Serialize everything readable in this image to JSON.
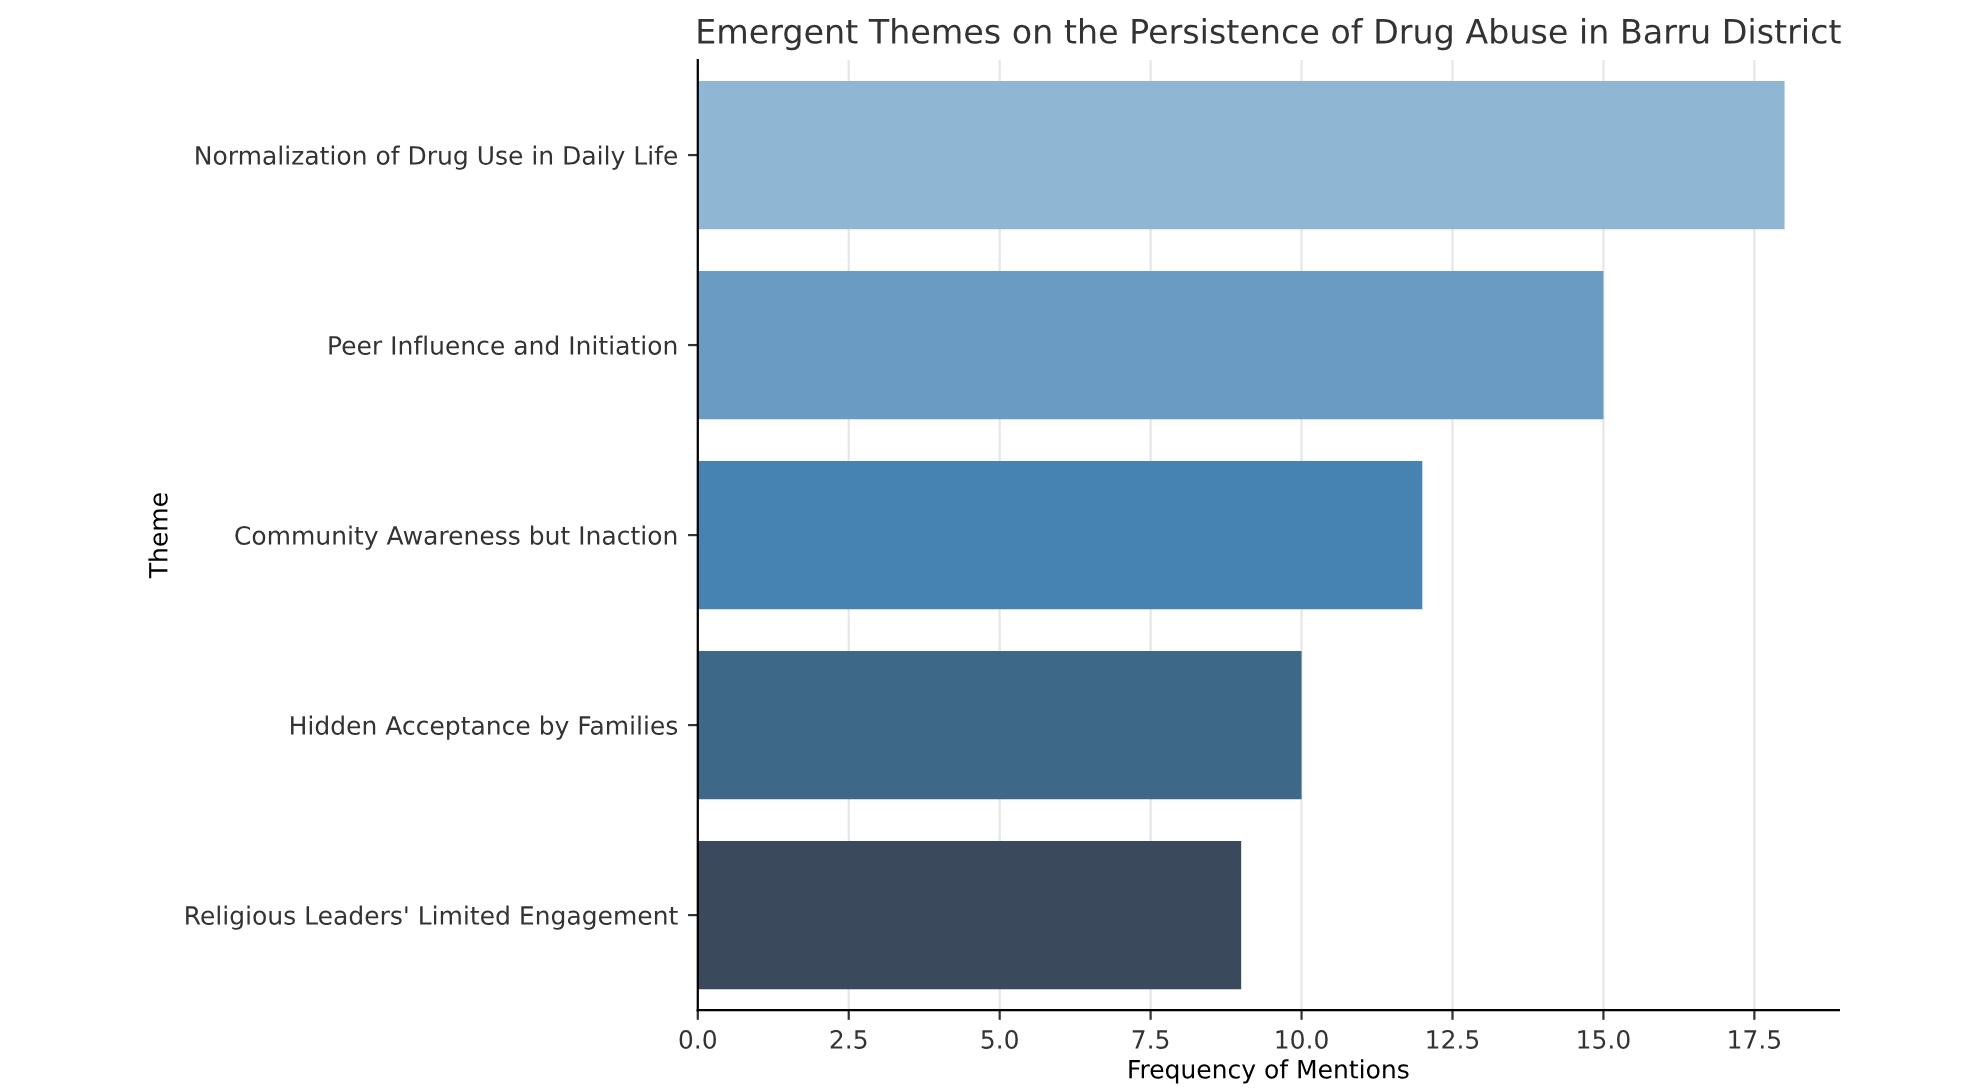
{
  "chart_data": {
    "type": "bar",
    "orientation": "horizontal",
    "title": "Emergent Themes on the Persistence of Drug Abuse in Barru District",
    "xlabel": "Frequency of Mentions",
    "ylabel": "Theme",
    "categories": [
      "Normalization of Drug Use in Daily Life",
      "Peer Influence and Initiation",
      "Community Awareness but Inaction",
      "Hidden Acceptance by Families",
      "Religious Leaders' Limited Engagement"
    ],
    "values": [
      18,
      15,
      12,
      10,
      9
    ],
    "colors": [
      "#8fb6d2",
      "#6a9bc2",
      "#4682b2",
      "#3e6888",
      "#3a4a5c"
    ],
    "xlim": [
      0,
      18.9
    ],
    "xticks": [
      {
        "value": 0,
        "label": "0.0"
      },
      {
        "value": 2.5,
        "label": "2.5"
      },
      {
        "value": 5,
        "label": "5.0"
      },
      {
        "value": 7.5,
        "label": "7.5"
      },
      {
        "value": 10,
        "label": "10.0"
      },
      {
        "value": 12.5,
        "label": "12.5"
      },
      {
        "value": 15,
        "label": "15.0"
      },
      {
        "value": 17.5,
        "label": "17.5"
      }
    ],
    "grid": "x"
  }
}
